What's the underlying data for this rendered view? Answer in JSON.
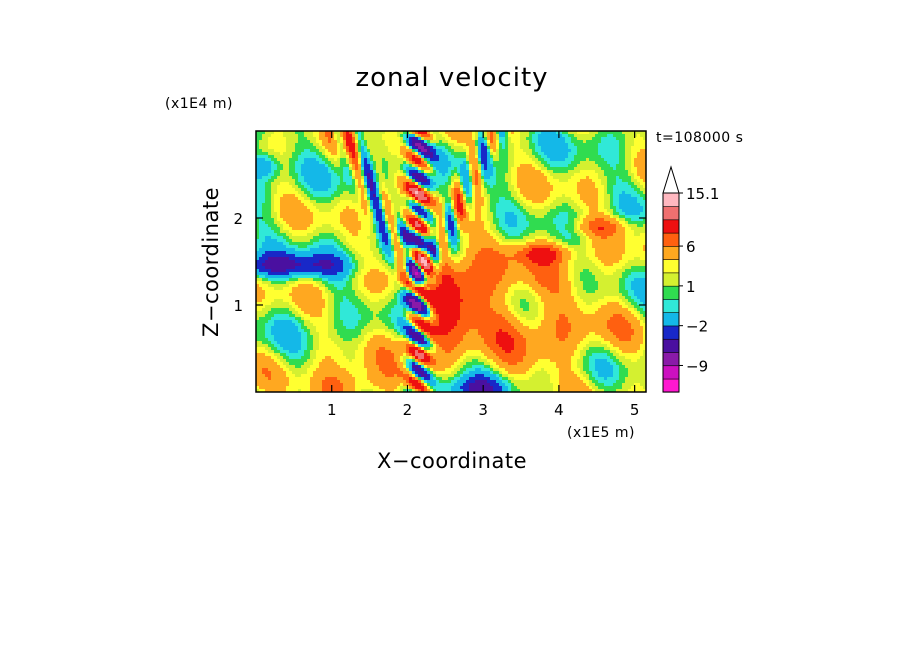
{
  "chart_data": {
    "type": "heatmap",
    "title": "zonal velocity",
    "xlabel": "X−coordinate",
    "ylabel": "Z−coordinate",
    "x_unit": "(x1E5 m)",
    "y_unit": "(x1E4 m)",
    "time_label": "t=108000 s",
    "xlim": [
      0,
      5.15
    ],
    "ylim": [
      0,
      3.0
    ],
    "x_ticks": [
      1,
      2,
      3,
      4,
      5
    ],
    "y_ticks": [
      1,
      2
    ],
    "colorbar": {
      "levels": [
        -15,
        -12,
        -9,
        -6,
        -4,
        -2,
        -1,
        0,
        1,
        2,
        4,
        6,
        9,
        12,
        15.1
      ],
      "colors": [
        "#ff18d0",
        "#cc10c0",
        "#8a1aa8",
        "#4a10a0",
        "#1828c8",
        "#14b8e8",
        "#30e8d8",
        "#30dc50",
        "#d4f030",
        "#ffff30",
        "#ffa820",
        "#ff6010",
        "#ee1010",
        "#f07070",
        "#ffb8c0",
        "#ffffff"
      ],
      "labels": [
        {
          "value": 15.1,
          "text": "15.1"
        },
        {
          "value": 6,
          "text": "6"
        },
        {
          "value": 1,
          "text": "1"
        },
        {
          "value": -2,
          "text": "−2"
        },
        {
          "value": -9,
          "text": "−9"
        }
      ],
      "extend_max": true
    },
    "field_features": [
      {
        "x": 2.15,
        "z": 1.15,
        "amp": -8,
        "sx": 0.15,
        "sz": 0.22
      },
      {
        "x": 2.55,
        "z": 1.05,
        "amp": 6,
        "sx": 0.35,
        "sz": 0.35
      },
      {
        "x": 3.4,
        "z": 0.8,
        "amp": 3.5,
        "sx": 0.9,
        "sz": 0.6
      },
      {
        "x": 0.4,
        "z": 1.45,
        "amp": -6,
        "sx": 0.6,
        "sz": 0.1
      },
      {
        "x": 1.2,
        "z": 0.05,
        "amp": 5,
        "sx": 0.4,
        "sz": 0.15
      },
      {
        "x": 2.9,
        "z": 0.02,
        "amp": -6,
        "sx": 0.35,
        "sz": 0.12
      },
      {
        "x": 3.8,
        "z": 1.6,
        "amp": 4,
        "sx": 0.3,
        "sz": 0.08
      },
      {
        "x": 4.55,
        "z": 1.9,
        "amp": 4,
        "sx": 0.3,
        "sz": 0.08
      },
      {
        "x": 0.1,
        "z": 2.6,
        "amp": -4,
        "sx": 0.15,
        "sz": 0.1
      },
      {
        "x": 2.9,
        "z": 0.6,
        "amp": -2,
        "sx": 0.3,
        "sz": 0.25
      }
    ]
  }
}
